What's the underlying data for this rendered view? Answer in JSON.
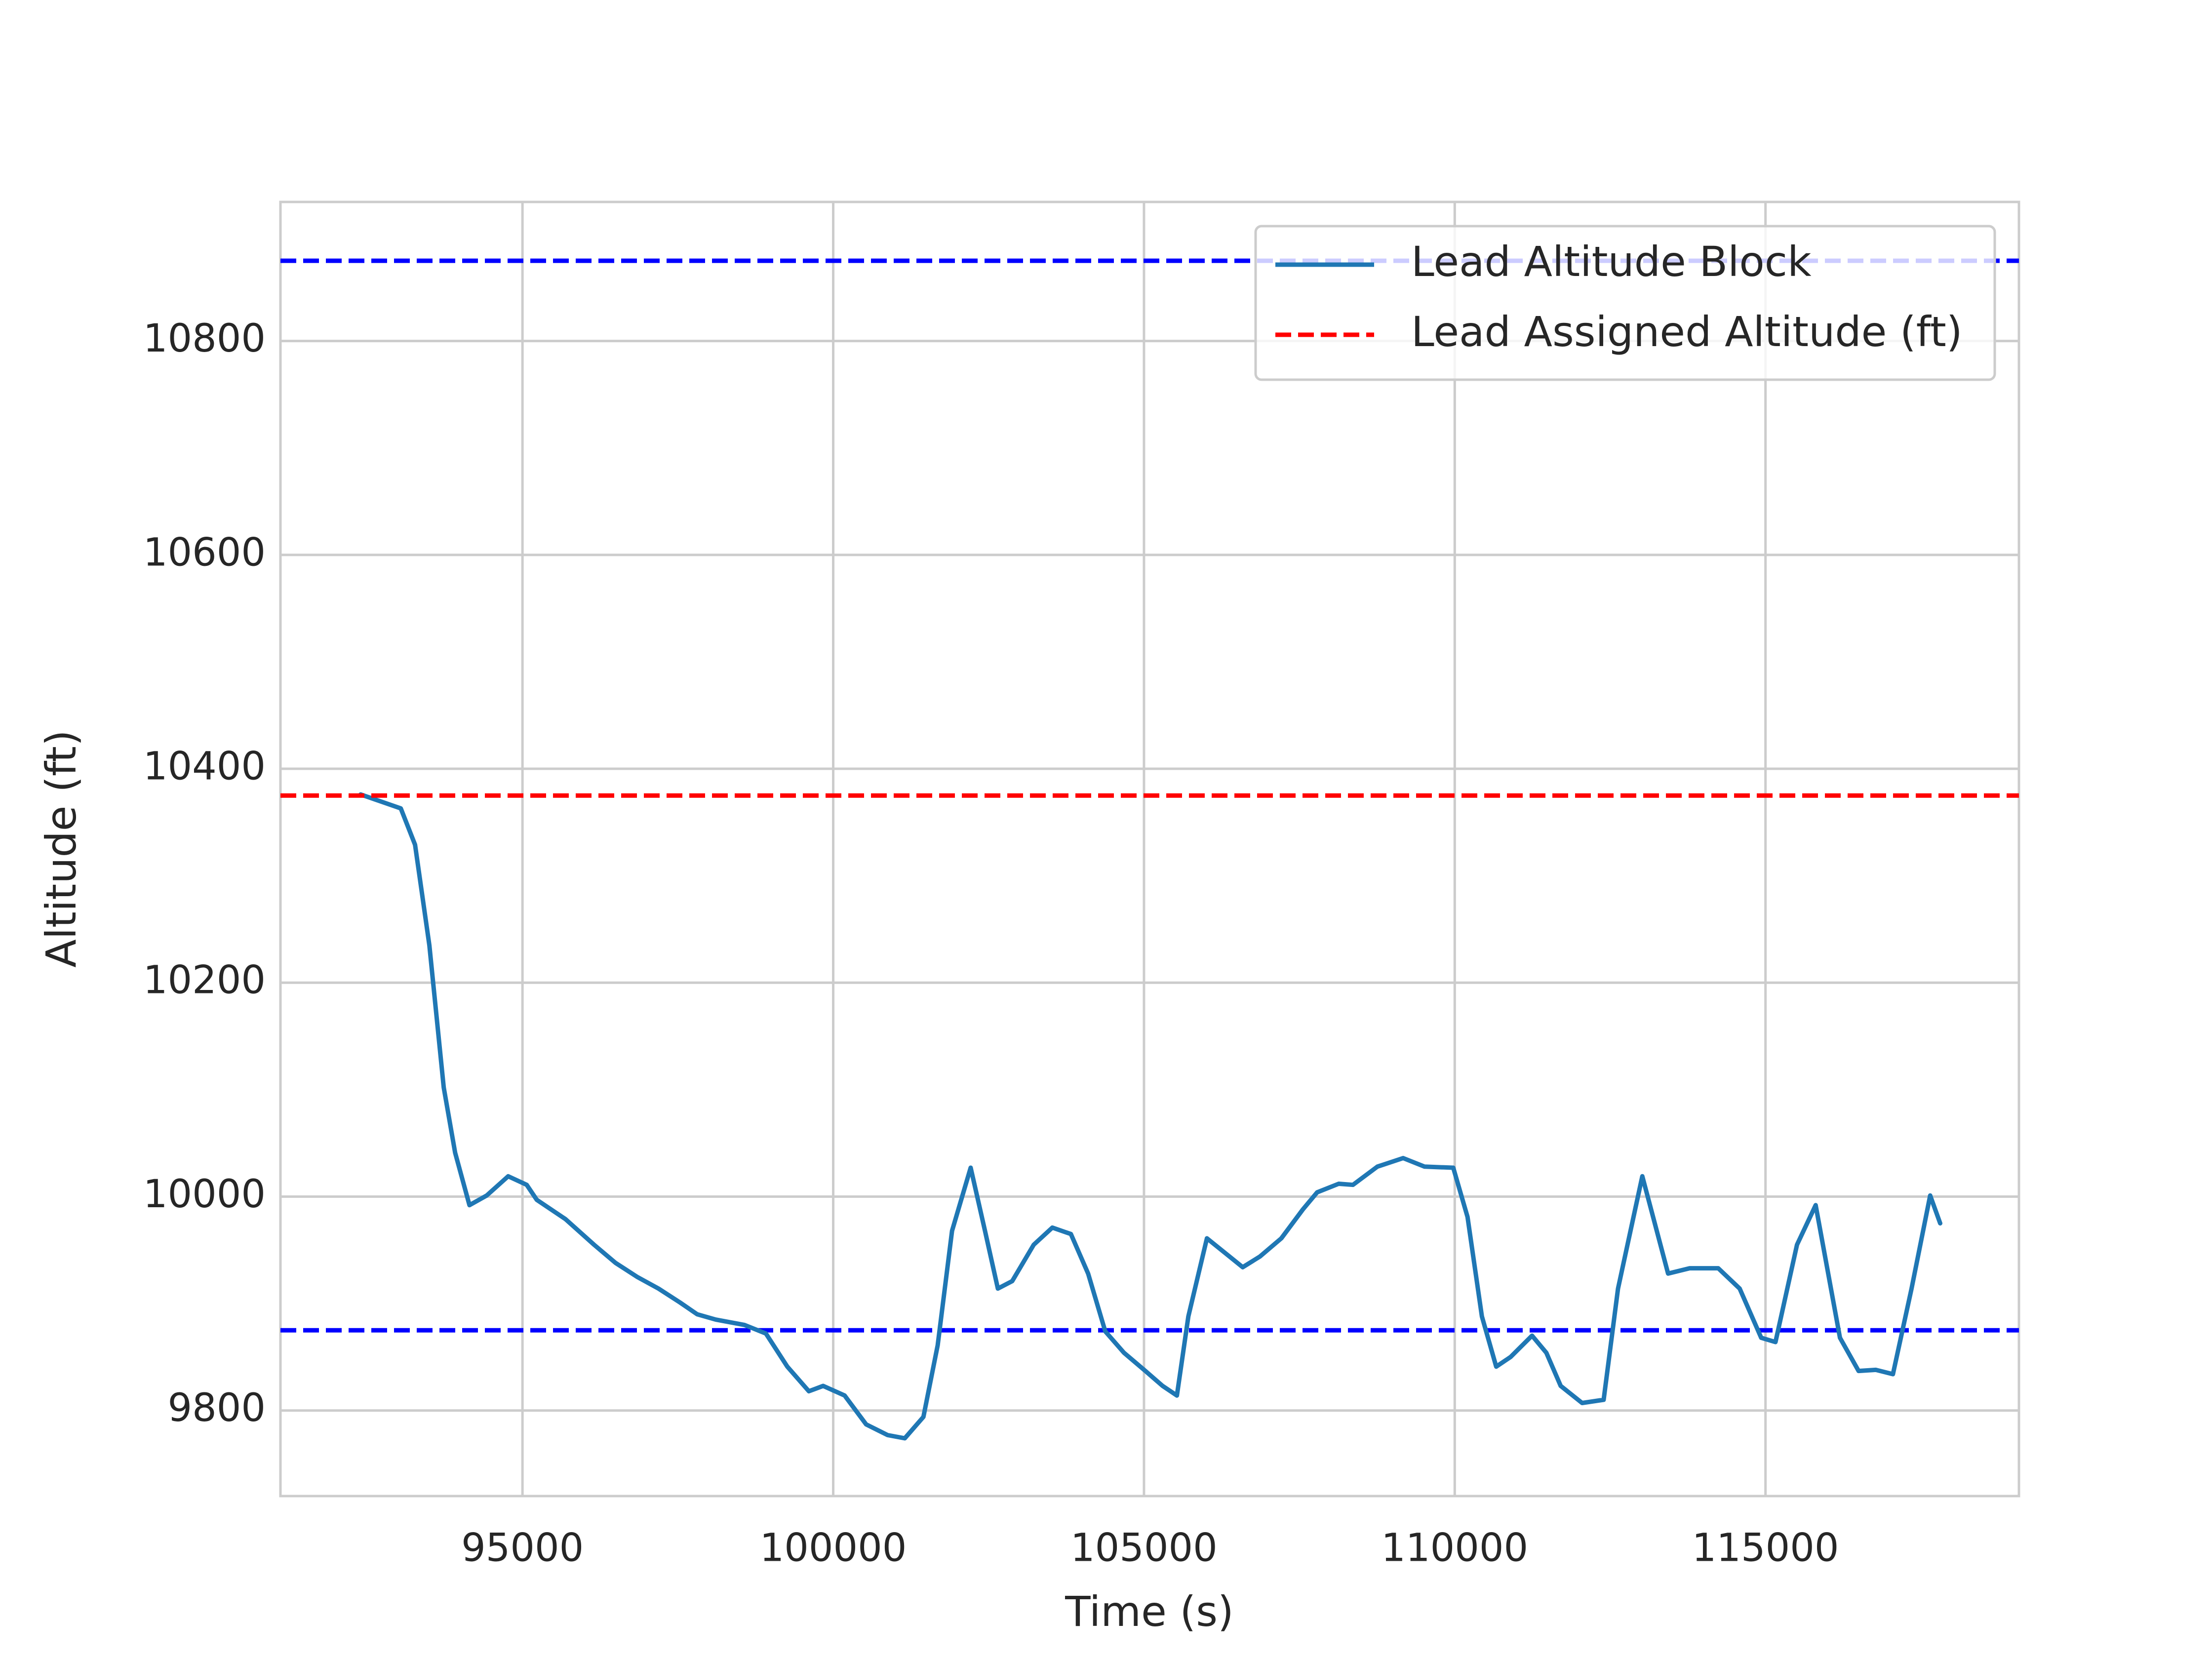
{
  "chart_data": {
    "type": "line",
    "x_label": "Time (s)",
    "y_label": "Altitude (ft)",
    "xlim": [
      91106,
      119078
    ],
    "ylim": [
      9720,
      10930
    ],
    "xticks": [
      95000,
      100000,
      105000,
      110000,
      115000
    ],
    "yticks": [
      9800,
      10000,
      10200,
      10400,
      10600,
      10800
    ],
    "grid": true,
    "legend": "upper right",
    "series": [
      {
        "name": "Lead Altitude Block",
        "color": "#1f77b4",
        "x": [
          92396,
          93042,
          93272,
          93502,
          93733,
          93917,
          94147,
          94424,
          94770,
          95069,
          95230,
          95691,
          96152,
          96498,
          96843,
          97189,
          97534,
          97811,
          98110,
          98571,
          98917,
          99262,
          99608,
          99838,
          100184,
          100530,
          100875,
          101152,
          101451,
          101681,
          101912,
          102211,
          102442,
          102649,
          102880,
          103226,
          103525,
          103824,
          104101,
          104377,
          104677,
          105022,
          105299,
          105530,
          105714,
          106013,
          106290,
          106589,
          106866,
          107210,
          107556,
          107787,
          108133,
          108363,
          108755,
          109170,
          109515,
          109976,
          110206,
          110437,
          110667,
          110898,
          111244,
          111474,
          111705,
          112050,
          112396,
          112627,
          113018,
          113433,
          113779,
          114240,
          114585,
          114931,
          115161,
          115507,
          115807,
          116198,
          116498,
          116774,
          117051,
          117350,
          117650,
          117811
        ],
        "values": [
          10376,
          10363,
          10329,
          10235,
          10102,
          10041,
          9992,
          10001,
          10019,
          10011,
          9997,
          9979,
          9955,
          9938,
          9925,
          9914,
          9901,
          9890,
          9885,
          9880,
          9872,
          9841,
          9818,
          9823,
          9814,
          9787,
          9777,
          9774,
          9794,
          9861,
          9968,
          10027,
          9968,
          9914,
          9921,
          9955,
          9971,
          9965,
          9928,
          9874,
          9854,
          9837,
          9823,
          9814,
          9888,
          9961,
          9948,
          9934,
          9944,
          9961,
          9988,
          10004,
          10012,
          10011,
          10028,
          10036,
          10028,
          10027,
          9981,
          9888,
          9841,
          9850,
          9870,
          9854,
          9823,
          9807,
          9810,
          9914,
          10019,
          9928,
          9933,
          9933,
          9914,
          9868,
          9864,
          9955,
          9992,
          9868,
          9837,
          9838,
          9834,
          9914,
          10001,
          9975
        ]
      },
      {
        "name": "Lead Assigned Altitude (ft)",
        "color": "#ff0000",
        "dashed": true,
        "value": 10375
      }
    ],
    "reference_lines": [
      {
        "value": 10875,
        "color": "#0000ff",
        "dashed": true
      },
      {
        "value": 9875,
        "color": "#0000ff",
        "dashed": true
      }
    ]
  }
}
